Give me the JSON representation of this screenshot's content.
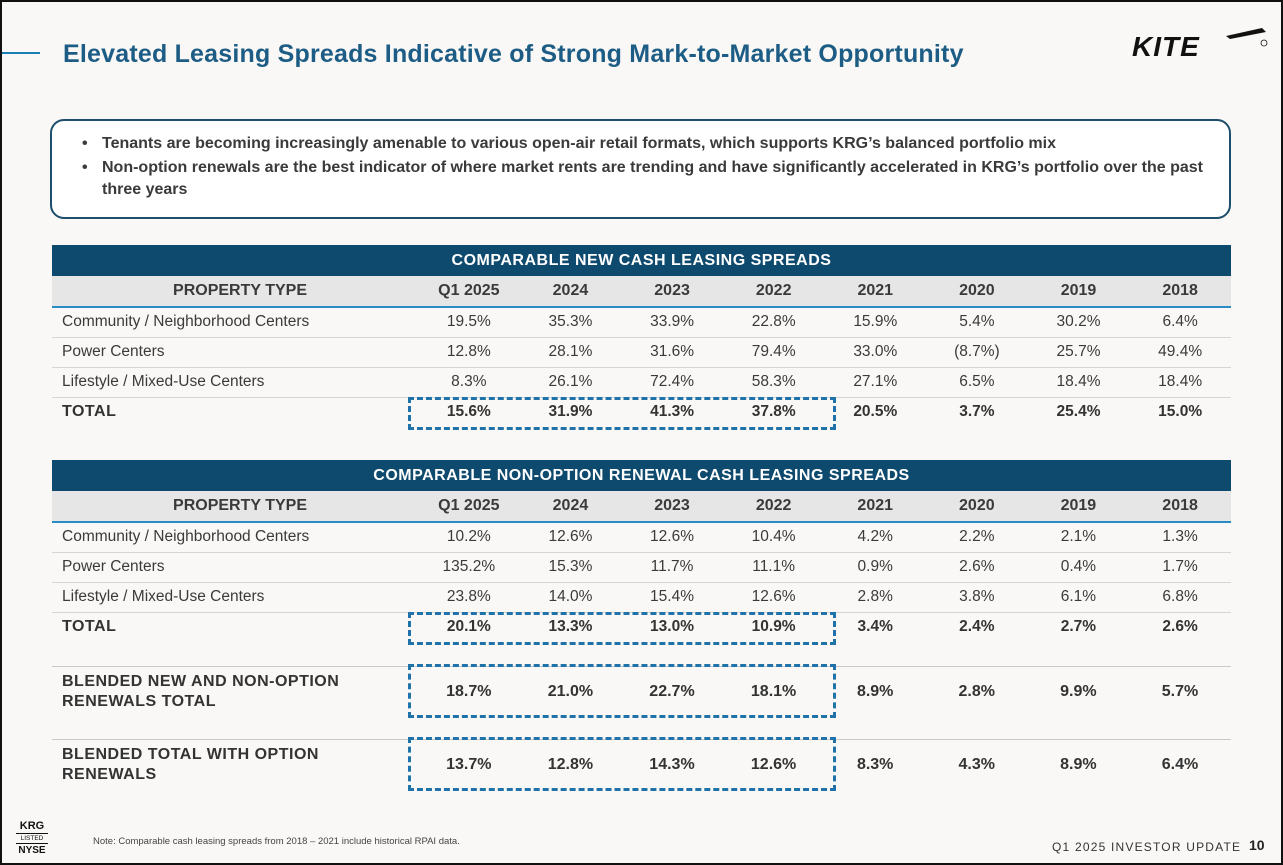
{
  "title": "Elevated Leasing Spreads Indicative of Strong Mark-to-Market Opportunity",
  "logo": {
    "text": "KITE"
  },
  "bullets": [
    "Tenants are becoming increasingly amenable to various open-air retail formats, which supports KRG’s balanced portfolio mix",
    "Non-option renewals are the best indicator of where market rents are trending and have significantly accelerated in KRG’s portfolio over the past three years"
  ],
  "new_spreads": {
    "banner": "COMPARABLE NEW CASH LEASING SPREADS",
    "headers": [
      "PROPERTY TYPE",
      "Q1 2025",
      "2024",
      "2023",
      "2022",
      "2021",
      "2020",
      "2019",
      "2018"
    ],
    "rows": [
      [
        "Community / Neighborhood Centers",
        "19.5%",
        "35.3%",
        "33.9%",
        "22.8%",
        "15.9%",
        "5.4%",
        "30.2%",
        "6.4%"
      ],
      [
        "Power Centers",
        "12.8%",
        "28.1%",
        "31.6%",
        "79.4%",
        "33.0%",
        "(8.7%)",
        "25.7%",
        "49.4%"
      ],
      [
        "Lifestyle / Mixed-Use Centers",
        "8.3%",
        "26.1%",
        "72.4%",
        "58.3%",
        "27.1%",
        "6.5%",
        "18.4%",
        "18.4%"
      ]
    ],
    "total": [
      "TOTAL",
      "15.6%",
      "31.9%",
      "41.3%",
      "37.8%",
      "20.5%",
      "3.7%",
      "25.4%",
      "15.0%"
    ]
  },
  "renewal_spreads": {
    "banner": "COMPARABLE NON-OPTION RENEWAL CASH LEASING SPREADS",
    "headers": [
      "PROPERTY TYPE",
      "Q1 2025",
      "2024",
      "2023",
      "2022",
      "2021",
      "2020",
      "2019",
      "2018"
    ],
    "rows": [
      [
        "Community / Neighborhood Centers",
        "10.2%",
        "12.6%",
        "12.6%",
        "10.4%",
        "4.2%",
        "2.2%",
        "2.1%",
        "1.3%"
      ],
      [
        "Power Centers",
        "135.2%",
        "15.3%",
        "11.7%",
        "11.1%",
        "0.9%",
        "2.6%",
        "0.4%",
        "1.7%"
      ],
      [
        "Lifestyle / Mixed-Use Centers",
        "23.8%",
        "14.0%",
        "15.4%",
        "12.6%",
        "2.8%",
        "3.8%",
        "6.1%",
        "6.8%"
      ]
    ],
    "total": [
      "TOTAL",
      "20.1%",
      "13.3%",
      "13.0%",
      "10.9%",
      "3.4%",
      "2.4%",
      "2.7%",
      "2.6%"
    ]
  },
  "blended": [
    {
      "label_1": "BLENDED NEW AND NON-OPTION",
      "label_2": "RENEWALS TOTAL",
      "values": [
        "18.7%",
        "21.0%",
        "22.7%",
        "18.1%",
        "8.9%",
        "2.8%",
        "9.9%",
        "5.7%"
      ]
    },
    {
      "label_1": "BLENDED TOTAL WITH OPTION",
      "label_2": "RENEWALS",
      "values": [
        "13.7%",
        "12.8%",
        "14.3%",
        "12.6%",
        "8.3%",
        "4.3%",
        "8.9%",
        "6.4%"
      ]
    }
  ],
  "note": "Note: Comparable cash leasing spreads from 2018 – 2021 include historical RPAI data.",
  "badge": {
    "top": "KRG",
    "mid": "LISTED",
    "bottom": "NYSE"
  },
  "footer": "Q1 2025 INVESTOR UPDATE",
  "page_number": "10",
  "colors": {
    "title": "#1d5d85",
    "banner": "#0e4a6e",
    "accent": "#2a8cc4",
    "highlight_dash": "#1f73a8"
  }
}
